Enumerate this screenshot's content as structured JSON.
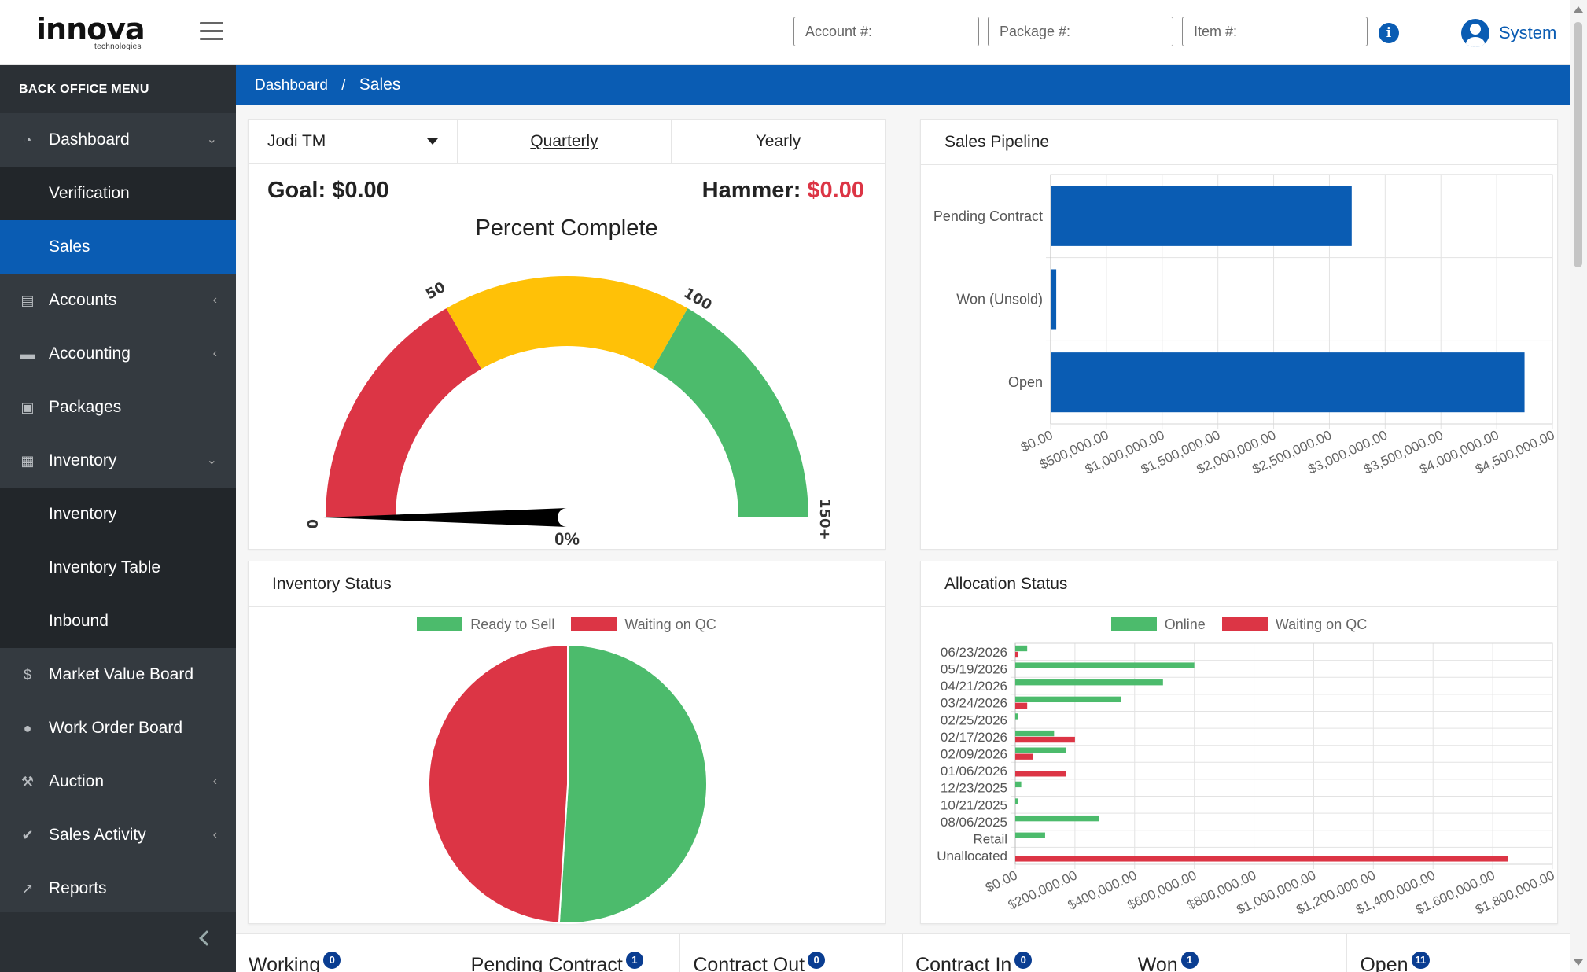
{
  "header": {
    "logo_text": "innova",
    "logo_sub": "technologies",
    "account_placeholder": "Account #:",
    "package_placeholder": "Package #:",
    "item_placeholder": "Item #:",
    "info_glyph": "i",
    "user_name": "System"
  },
  "sidebar": {
    "title": "BACK OFFICE MENU",
    "items": [
      {
        "label": "Dashboard",
        "icon": "gauge-icon",
        "chev": "⌄"
      },
      {
        "label": "Verification"
      },
      {
        "label": "Sales"
      },
      {
        "label": "Accounts",
        "icon": "id-card-icon",
        "chev": "‹"
      },
      {
        "label": "Accounting",
        "icon": "wallet-icon",
        "chev": "‹"
      },
      {
        "label": "Packages",
        "icon": "gift-icon"
      },
      {
        "label": "Inventory",
        "icon": "boxes-icon",
        "chev": "⌄"
      },
      {
        "label": "Inventory"
      },
      {
        "label": "Inventory Table"
      },
      {
        "label": "Inbound"
      },
      {
        "label": "Market Value Board",
        "icon": "dollar-chat-icon"
      },
      {
        "label": "Work Order Board",
        "icon": "worker-icon"
      },
      {
        "label": "Auction",
        "icon": "gavel-icon",
        "chev": "‹"
      },
      {
        "label": "Sales Activity",
        "icon": "clipboard-check-icon",
        "chev": "‹"
      },
      {
        "label": "Reports",
        "icon": "chart-line-icon"
      }
    ]
  },
  "breadcrumb": {
    "root": "Dashboard",
    "sep": "/",
    "current": "Sales"
  },
  "goal_card": {
    "selected_user": "Jodi TM",
    "tabs": [
      "Quarterly",
      "Yearly"
    ],
    "goal_label": "Goal:",
    "goal_value": "$0.00",
    "hammer_label": "Hammer:",
    "hammer_value": "$0.00",
    "gauge_title": "Percent Complete",
    "gauge_value_label": "0%",
    "gauge_ticks": [
      "0",
      "50",
      "100",
      "150+"
    ],
    "gauge_value": 0,
    "colors": {
      "red": "#dc3545",
      "yellow": "#ffc107",
      "green": "#4cbb6c"
    }
  },
  "pipeline": {
    "title": "Sales Pipeline",
    "chart_data": {
      "type": "bar",
      "orientation": "horizontal",
      "categories": [
        "Pending Contract",
        "Won (Unsold)",
        "Open"
      ],
      "values": [
        2700000,
        50000,
        4250000
      ],
      "xlim": [
        0,
        4500000
      ],
      "ticks": [
        "$0.00",
        "$500,000.00",
        "$1,000,000.00",
        "$1,500,000.00",
        "$2,000,000.00",
        "$2,500,000.00",
        "$3,000,000.00",
        "$3,500,000.00",
        "$4,000,000.00",
        "$4,500,000.00"
      ],
      "tick_values": [
        0,
        500000,
        1000000,
        1500000,
        2000000,
        2500000,
        3000000,
        3500000,
        4000000,
        4500000
      ],
      "color": "#0a5cb3",
      "grid": true
    }
  },
  "inventory_status": {
    "title": "Inventory Status",
    "chart_data": {
      "type": "pie",
      "labels": [
        "Ready to Sell",
        "Waiting on QC"
      ],
      "values": [
        51,
        49
      ],
      "colors": [
        "#4cbb6c",
        "#dc3545"
      ],
      "legend": "top"
    }
  },
  "allocation_status": {
    "title": "Allocation Status",
    "chart_data": {
      "type": "bar",
      "orientation": "horizontal",
      "categories": [
        "06/23/2026",
        "05/19/2026",
        "04/21/2026",
        "03/24/2026",
        "02/25/2026",
        "02/17/2026",
        "02/09/2026",
        "01/06/2026",
        "12/23/2025",
        "10/21/2025",
        "08/06/2025",
        "Retail",
        "Unallocated"
      ],
      "series": [
        {
          "name": "Online",
          "color": "#4cbb6c",
          "values": [
            40000,
            600000,
            495000,
            355000,
            10000,
            130000,
            170000,
            0,
            20000,
            10000,
            280000,
            100000,
            0
          ]
        },
        {
          "name": "Waiting on QC",
          "color": "#dc3545",
          "values": [
            10000,
            0,
            0,
            40000,
            0,
            200000,
            60000,
            170000,
            0,
            0,
            0,
            0,
            1650000
          ]
        }
      ],
      "xlim": [
        0,
        1800000
      ],
      "ticks": [
        "$0.00",
        "$200,000.00",
        "$400,000.00",
        "$600,000.00",
        "$800,000.00",
        "$1,000,000.00",
        "$1,200,000.00",
        "$1,400,000.00",
        "$1,600,000.00",
        "$1,800,000.00"
      ],
      "tick_values": [
        0,
        200000,
        400000,
        600000,
        800000,
        1000000,
        1200000,
        1400000,
        1600000,
        1800000
      ],
      "legend": "top",
      "grid": true
    }
  },
  "stats": [
    {
      "label": "Working",
      "count": "0"
    },
    {
      "label": "Pending Contract",
      "count": "1"
    },
    {
      "label": "Contract Out",
      "count": "0"
    },
    {
      "label": "Contract In",
      "count": "0"
    },
    {
      "label": "Won",
      "count": "1"
    },
    {
      "label": "Open",
      "count": "11"
    }
  ]
}
